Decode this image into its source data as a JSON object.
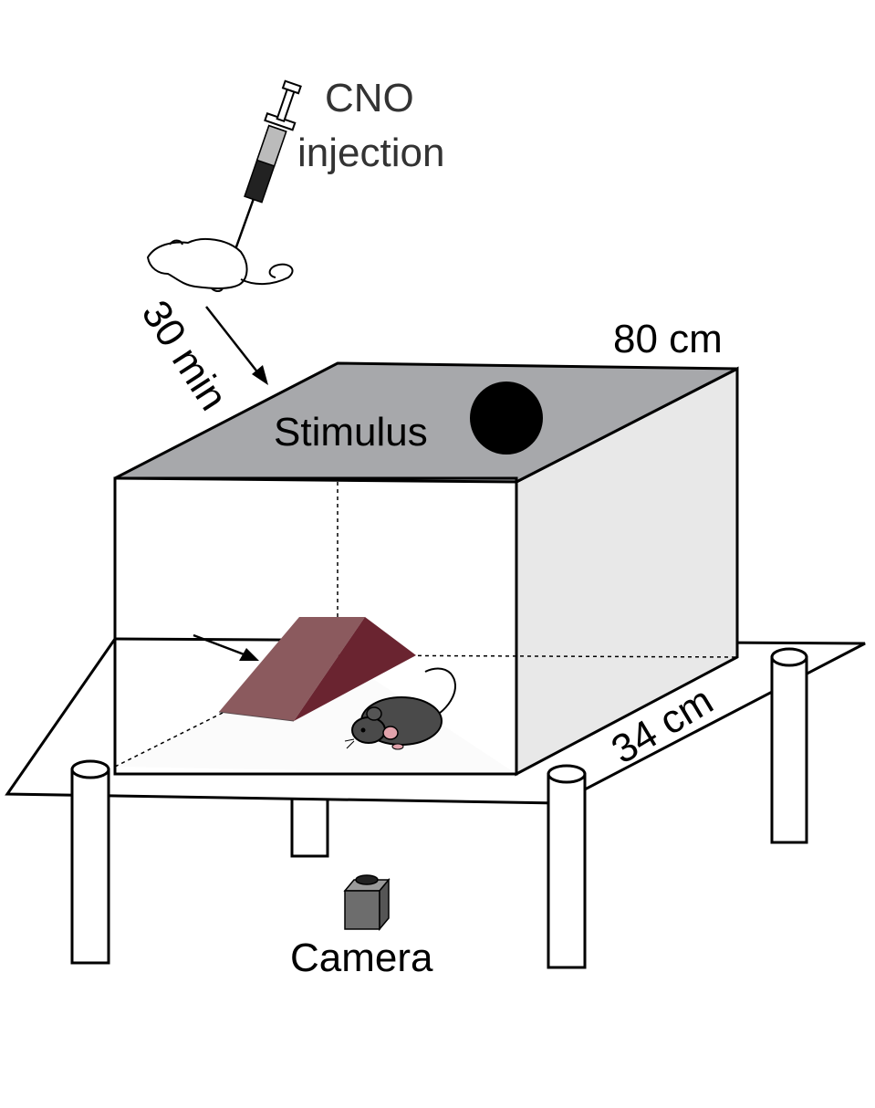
{
  "labels": {
    "injection_line1": "CNO",
    "injection_line2": "injection",
    "delay": "30 min",
    "stimulus": "Stimulus",
    "length": "80 cm",
    "width": "34 cm",
    "camera": "Camera"
  },
  "colors": {
    "arena_top": "#a7a8ab",
    "arena_side": "#e8e8e8",
    "shelter_light": "#8b5a5e",
    "shelter_dark": "#6a2430",
    "mouse": "#4a4a4a",
    "stimulus_disc": "#000000",
    "camera": "#6d6d6d"
  },
  "icons": [
    "syringe-icon",
    "mouse-outline-icon",
    "mouse-icon",
    "camera-icon",
    "stimulus-disc-icon"
  ]
}
